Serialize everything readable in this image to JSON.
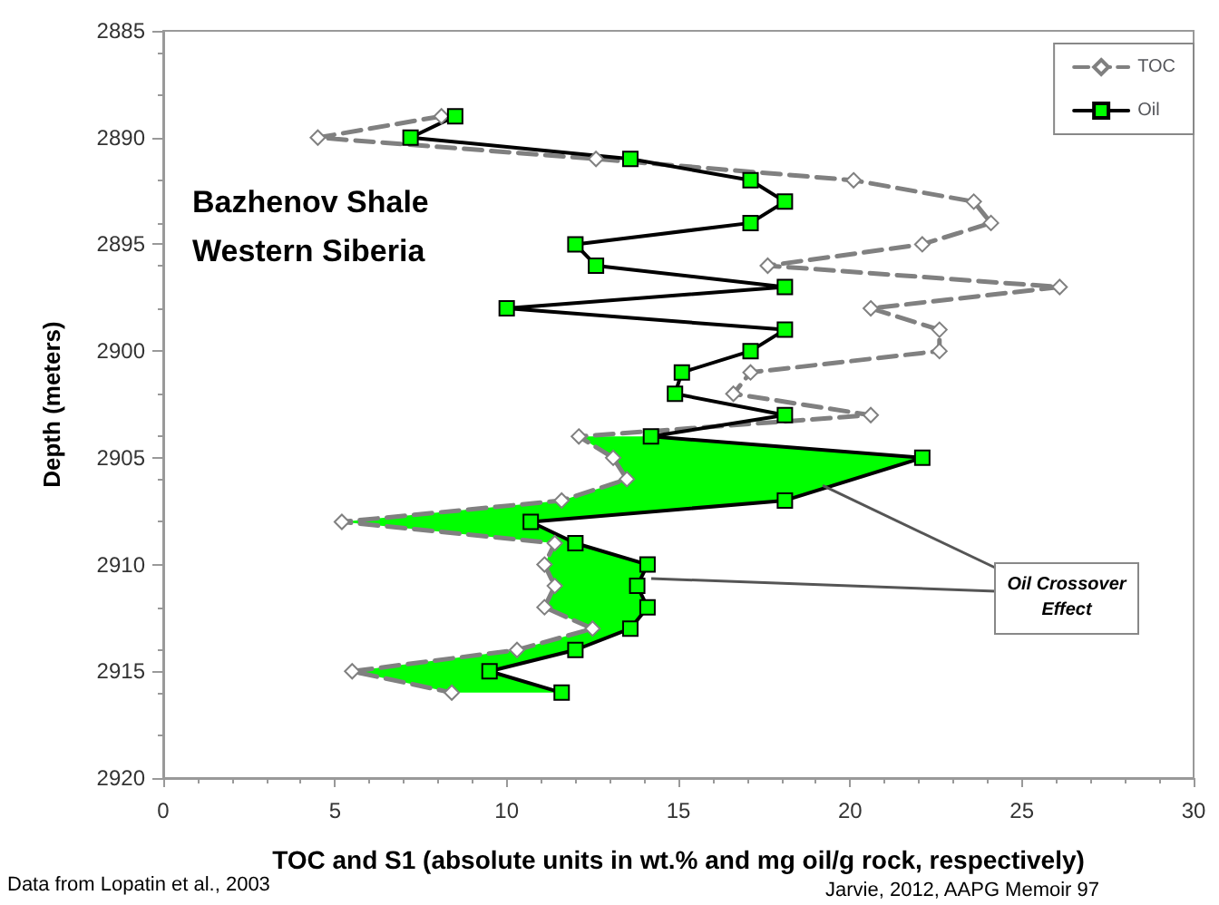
{
  "chart_data": {
    "type": "line",
    "xlabel": "TOC and S1 (absolute units in wt.% and mg oil/g rock, respectively)",
    "ylabel": "Depth (meters)",
    "annotations": [
      "Bazhenov Shale Western Siberia",
      {
        "text": "Oil Crossover Effect",
        "x": 19.2,
        "y": 2906.3
      },
      "Data from Lopatin et al., 2003",
      "Jarvie, 2012, AAPG  Memoir 97"
    ],
    "xlim": [
      0,
      30
    ],
    "xticks": [
      0,
      5,
      10,
      15,
      20,
      25,
      30
    ],
    "ylim": [
      2920,
      2885
    ],
    "yticks": [
      2885,
      2890,
      2895,
      2900,
      2905,
      2910,
      2915,
      2920
    ],
    "legend": "top right",
    "series": [
      {
        "type": "area",
        "color": "#00ff00",
        "x": [
          14.2,
          22.1,
          18.1,
          10.7,
          12.0,
          14.1,
          13.8,
          14.1,
          13.6,
          12.0,
          9.5,
          11.6,
          8.4,
          5.5,
          10.3,
          12.5,
          11.1,
          11.4,
          11.1,
          11.4,
          5.2,
          11.6,
          13.5,
          13.1,
          12.1
        ],
        "values": [
          2904,
          2905,
          2907,
          2908,
          2909,
          2910,
          2911,
          2912,
          2913,
          2914,
          2915,
          2916,
          2916,
          2915,
          2914,
          2913,
          2912,
          2911,
          2910,
          2909,
          2908,
          2907,
          2906,
          2905,
          2904
        ]
      },
      {
        "name": "TOC",
        "color": "#808080",
        "marker": "diamond",
        "line_style": "dashed",
        "x": [
          8.1,
          4.5,
          12.6,
          20.1,
          23.6,
          24.1,
          22.1,
          17.6,
          26.1,
          20.6,
          22.6,
          22.6,
          17.1,
          16.6,
          20.6,
          12.1,
          13.1,
          13.5,
          11.6,
          5.2,
          11.4,
          11.1,
          11.4,
          11.1,
          12.5,
          10.3,
          5.5,
          8.4
        ],
        "values": [
          2889,
          2890,
          2891,
          2892,
          2893,
          2894,
          2895,
          2896,
          2897,
          2898,
          2899,
          2900,
          2901,
          2902,
          2903,
          2904,
          2905,
          2906,
          2907,
          2908,
          2909,
          2910,
          2911,
          2912,
          2913,
          2914,
          2915,
          2916
        ],
        "colors": [
          "#ffffff",
          "#ffffff",
          "#ffffff",
          "#ffffff",
          "#ffffff",
          "#ffffff",
          "#ffffff",
          "#ffffff",
          "#ffffff",
          "#ffffff",
          "#ffffff",
          "#ffffff",
          "#ffffff",
          "#ffffff",
          "#ffffff",
          "#ffffff",
          "#ffffff",
          "#ffffff",
          "#ffffff",
          "#ffffff",
          "#ffffff",
          "#ffffff",
          "#ffffff",
          "#ffffff",
          "#ffffff",
          "#ffffff",
          "#ffffff",
          "#ffffff"
        ]
      },
      {
        "name": "Oil",
        "color": "#000000",
        "marker": "square",
        "line_style": "solid",
        "x": [
          8.5,
          7.2,
          13.6,
          17.1,
          18.1,
          17.1,
          12.0,
          12.6,
          18.1,
          10.0,
          18.1,
          17.1,
          15.1,
          14.9,
          18.1,
          14.2,
          22.1,
          18.1,
          10.7,
          12.0,
          14.1,
          13.8,
          14.1,
          13.6,
          12.0,
          9.5,
          11.6
        ],
        "values": [
          2889,
          2890,
          2891,
          2892,
          2893,
          2894,
          2895,
          2896,
          2897,
          2898,
          2899,
          2900,
          2901,
          2902,
          2903,
          2904,
          2905,
          2907,
          2908,
          2909,
          2910,
          2911,
          2912,
          2913,
          2914,
          2915,
          2916
        ],
        "colors": [
          "#00ff00",
          "#00ff00",
          "#00ff00",
          "#00ff00",
          "#00ff00",
          "#00ff00",
          "#00ff00",
          "#00ff00",
          "#00ff00",
          "#00ff00",
          "#00ff00",
          "#00ff00",
          "#00ff00",
          "#00ff00",
          "#00ff00",
          "#00ff00",
          "#00ff00",
          "#00ff00",
          "#00ff00",
          "#00ff00",
          "#00ff00",
          "#00ff00",
          "#00ff00",
          "#00ff00",
          "#00ff00",
          "#00ff00",
          "#00ff00"
        ]
      }
    ]
  }
}
